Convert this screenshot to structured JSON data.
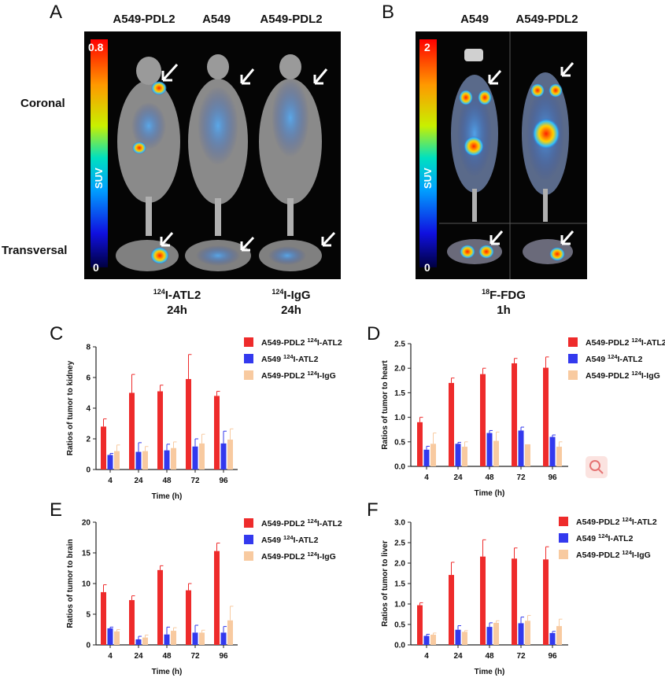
{
  "panels": {
    "A": {
      "letter": "A",
      "columns": [
        "A549-PDL2",
        "A549",
        "A549-PDL2"
      ],
      "rows": [
        "Coronal",
        "Transversal"
      ],
      "scale": {
        "max": "0.8",
        "min": "0",
        "label": "SUV"
      },
      "tracer1": {
        "name": "ATL2",
        "sup": "124",
        "prefix": "I-",
        "time": "24h"
      },
      "tracer2": {
        "name": "IgG",
        "sup": "124",
        "prefix": "I-",
        "time": "24h"
      }
    },
    "B": {
      "letter": "B",
      "columns": [
        "A549",
        "A549-PDL2"
      ],
      "scale": {
        "max": "2",
        "min": "0",
        "label": "SUV"
      },
      "tracer": {
        "sup": "18",
        "name": "F-FDG",
        "time": "1h"
      }
    }
  },
  "colors": {
    "series1": "#ee2b2b",
    "series2": "#3339ee",
    "series3": "#f8caa0",
    "axis": "#222222"
  },
  "chart_data": [
    {
      "letter": "C",
      "type": "bar",
      "categories": [
        "4",
        "24",
        "48",
        "72",
        "96"
      ],
      "xlabel": "Time (h)",
      "ylabel": "Ratios of tumor to kidney",
      "ylim": [
        0,
        8
      ],
      "yticks": [
        "0",
        "2",
        "4",
        "6",
        "8"
      ],
      "legend": [
        "A549-PDL2 124I-ATL2",
        "A549 124I-ATL2",
        "A549-PDL2 124I-IgG"
      ],
      "series": [
        {
          "name": "A549-PDL2 124I-ATL2",
          "values": [
            2.8,
            5.0,
            5.1,
            5.9,
            4.8
          ],
          "errors": [
            0.5,
            1.2,
            0.4,
            1.6,
            0.3
          ]
        },
        {
          "name": "A549 124I-ATL2",
          "values": [
            0.95,
            1.15,
            1.25,
            1.5,
            1.7
          ],
          "errors": [
            0.1,
            0.6,
            0.4,
            0.5,
            0.8
          ]
        },
        {
          "name": "A549-PDL2 124I-IgG",
          "values": [
            1.2,
            1.2,
            1.4,
            1.7,
            1.95
          ],
          "errors": [
            0.4,
            0.3,
            0.4,
            0.6,
            0.7
          ]
        }
      ]
    },
    {
      "letter": "D",
      "type": "bar",
      "categories": [
        "4",
        "24",
        "48",
        "72",
        "96"
      ],
      "xlabel": "Time (h)",
      "ylabel": "Ratios of tumor to heart",
      "ylim": [
        0,
        2.5
      ],
      "yticks": [
        "0.0",
        "0.5",
        "1.0",
        "1.5",
        "2.0",
        "2.5"
      ],
      "legend": [
        "A549-PDL2 124I-ATL2",
        "A549 124I-ATL2",
        "A549-PDL2 124I-IgG"
      ],
      "series": [
        {
          "name": "A549-PDL2 124I-ATL2",
          "values": [
            0.9,
            1.7,
            1.88,
            2.1,
            2.01
          ],
          "errors": [
            0.1,
            0.1,
            0.12,
            0.1,
            0.22
          ]
        },
        {
          "name": "A549 124I-ATL2",
          "values": [
            0.34,
            0.46,
            0.68,
            0.73,
            0.6
          ],
          "errors": [
            0.07,
            0.03,
            0.05,
            0.07,
            0.04
          ]
        },
        {
          "name": "A549-PDL2 124I-IgG",
          "values": [
            0.46,
            0.4,
            0.52,
            0.45,
            0.4
          ],
          "errors": [
            0.22,
            0.1,
            0.18,
            0.0,
            0.1
          ]
        }
      ]
    },
    {
      "letter": "E",
      "type": "bar",
      "categories": [
        "4",
        "24",
        "48",
        "72",
        "96"
      ],
      "xlabel": "Time (h)",
      "ylabel": "Ratios of tumor to brain",
      "ylim": [
        0,
        20
      ],
      "yticks": [
        "0",
        "5",
        "10",
        "15",
        "20"
      ],
      "legend": [
        "A549-PDL2 124I-ATL2",
        "A549 124I-ATL2",
        "A549-PDL2 124I-IgG"
      ],
      "series": [
        {
          "name": "A549-PDL2 124I-ATL2",
          "values": [
            8.6,
            7.3,
            12.2,
            8.9,
            15.3
          ],
          "errors": [
            1.2,
            0.7,
            0.7,
            1.1,
            1.3
          ]
        },
        {
          "name": "A549 124I-ATL2",
          "values": [
            2.7,
            0.9,
            1.7,
            2.0,
            2.0
          ],
          "errors": [
            0.2,
            0.5,
            1.2,
            1.2,
            1.0
          ]
        },
        {
          "name": "A549-PDL2 124I-IgG",
          "values": [
            2.2,
            1.2,
            2.3,
            2.0,
            4.0
          ],
          "errors": [
            0.3,
            0.4,
            0.5,
            0.4,
            2.3
          ]
        }
      ]
    },
    {
      "letter": "F",
      "type": "bar",
      "categories": [
        "4",
        "24",
        "48",
        "72",
        "96"
      ],
      "xlabel": "Time (h)",
      "ylabel": "Ratios of tumor to liver",
      "ylim": [
        0,
        3.0
      ],
      "yticks": [
        "0.0",
        "0.5",
        "1.0",
        "1.5",
        "2.0",
        "2.5",
        "3.0"
      ],
      "legend": [
        "A549-PDL2 124I-ATL2",
        "A549 124I-ATL2",
        "A549-PDL2 124I-IgG"
      ],
      "series": [
        {
          "name": "A549-PDL2 124I-ATL2",
          "values": [
            0.97,
            1.71,
            2.16,
            2.11,
            2.09
          ],
          "errors": [
            0.06,
            0.31,
            0.41,
            0.26,
            0.31
          ]
        },
        {
          "name": "A549 124I-ATL2",
          "values": [
            0.22,
            0.37,
            0.44,
            0.53,
            0.29
          ],
          "errors": [
            0.04,
            0.1,
            0.1,
            0.15,
            0.04
          ]
        },
        {
          "name": "A549-PDL2 124I-IgG",
          "values": [
            0.25,
            0.32,
            0.54,
            0.59,
            0.46
          ],
          "errors": [
            0.04,
            0.03,
            0.05,
            0.13,
            0.17
          ]
        }
      ]
    }
  ]
}
